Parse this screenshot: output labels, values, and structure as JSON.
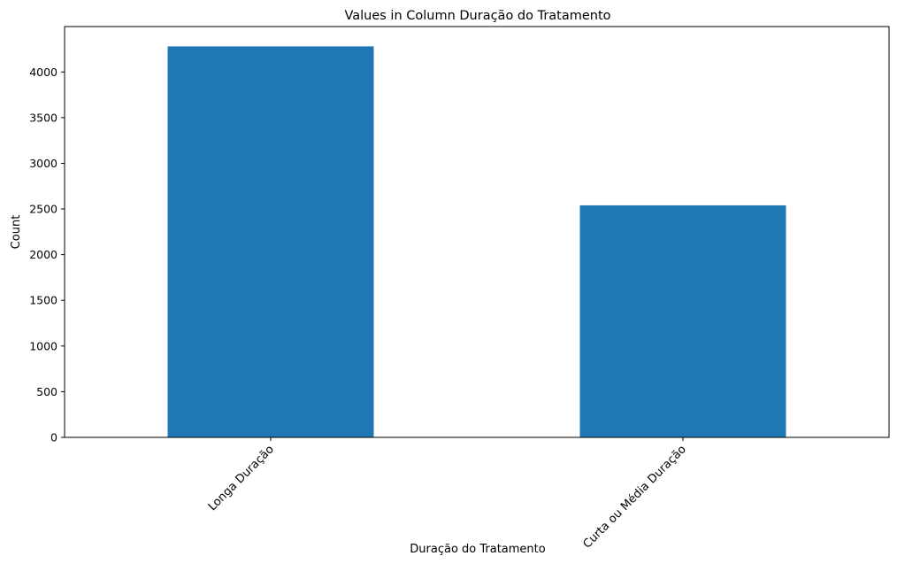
{
  "chart_data": {
    "type": "bar",
    "title": "Values in Column Duração do Tratamento",
    "xlabel": "Duração do Tratamento",
    "ylabel": "Count",
    "categories": [
      "Longa Duração",
      "Curta ou Média Duração"
    ],
    "values": [
      4280,
      2540
    ],
    "ylim": [
      0,
      4497
    ],
    "yticks": [
      0,
      500,
      1000,
      1500,
      2000,
      2500,
      3000,
      3500,
      4000
    ],
    "bar_color": "#1f77b4",
    "grid": false,
    "xtick_rotation": 45
  }
}
